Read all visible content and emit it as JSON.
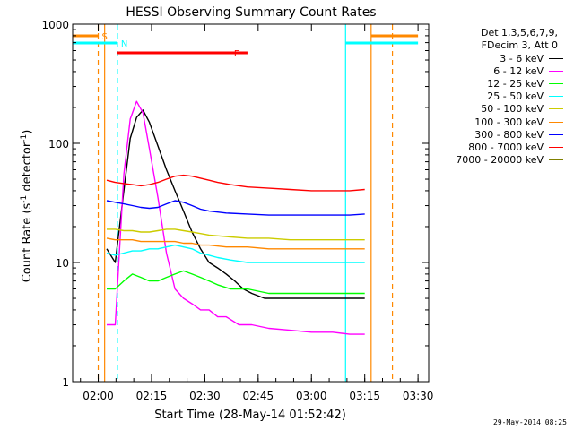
{
  "chart_data": {
    "type": "line",
    "title": "HESSI Observing Summary Count Rates",
    "xlabel": "Start Time (28-May-14 01:52:42)",
    "ylabel_main": "Count Rate (s",
    "ylabel_sup1": "-1",
    "ylabel_mid": " detector",
    "ylabel_sup2": "-1",
    "ylabel_end": ")",
    "yscale": "log",
    "ylim": [
      1,
      1000
    ],
    "xlim": [
      1.88,
      3.55
    ],
    "x_units": "hours UT",
    "x_ticks": [
      {
        "value": 2.0,
        "label": "02:00"
      },
      {
        "value": 2.25,
        "label": "02:15"
      },
      {
        "value": 2.5,
        "label": "02:30"
      },
      {
        "value": 2.75,
        "label": "02:45"
      },
      {
        "value": 3.0,
        "label": "03:00"
      },
      {
        "value": 3.25,
        "label": "03:15"
      },
      {
        "value": 3.5,
        "label": "03:30"
      }
    ],
    "y_ticks": [
      {
        "value": 1,
        "label": "1"
      },
      {
        "value": 10,
        "label": "10"
      },
      {
        "value": 100,
        "label": "100"
      },
      {
        "value": 1000,
        "label": "1000"
      }
    ],
    "legend": {
      "header_line1": "Det 1,3,5,6,7,9,",
      "header_line2": "FDecim 3, Att 0",
      "placement": "right"
    },
    "series": [
      {
        "name": "3 - 6 keV",
        "color": "#000000",
        "points": [
          [
            2.04,
            13
          ],
          [
            2.08,
            10
          ],
          [
            2.12,
            40
          ],
          [
            2.15,
            110
          ],
          [
            2.18,
            165
          ],
          [
            2.21,
            190
          ],
          [
            2.24,
            150
          ],
          [
            2.28,
            95
          ],
          [
            2.32,
            60
          ],
          [
            2.36,
            40
          ],
          [
            2.4,
            27
          ],
          [
            2.44,
            18
          ],
          [
            2.48,
            13
          ],
          [
            2.52,
            10
          ],
          [
            2.56,
            9
          ],
          [
            2.6,
            8
          ],
          [
            2.64,
            7
          ],
          [
            2.68,
            6
          ],
          [
            2.72,
            5.5
          ],
          [
            2.78,
            5
          ],
          [
            2.86,
            5
          ],
          [
            2.94,
            5
          ],
          [
            3.02,
            5
          ],
          [
            3.1,
            5
          ],
          [
            3.18,
            5
          ],
          [
            3.25,
            5
          ]
        ]
      },
      {
        "name": "6 - 12 keV",
        "color": "#ff00ff",
        "points": [
          [
            2.04,
            3
          ],
          [
            2.08,
            3
          ],
          [
            2.12,
            55
          ],
          [
            2.15,
            160
          ],
          [
            2.18,
            225
          ],
          [
            2.21,
            180
          ],
          [
            2.24,
            90
          ],
          [
            2.28,
            35
          ],
          [
            2.32,
            12
          ],
          [
            2.36,
            6
          ],
          [
            2.4,
            5
          ],
          [
            2.44,
            4.5
          ],
          [
            2.48,
            4
          ],
          [
            2.52,
            4
          ],
          [
            2.56,
            3.5
          ],
          [
            2.6,
            3.5
          ],
          [
            2.66,
            3
          ],
          [
            2.72,
            3
          ],
          [
            2.8,
            2.8
          ],
          [
            2.9,
            2.7
          ],
          [
            3.0,
            2.6
          ],
          [
            3.1,
            2.6
          ],
          [
            3.18,
            2.5
          ],
          [
            3.25,
            2.5
          ]
        ]
      },
      {
        "name": "12 - 25 keV",
        "color": "#00ff00",
        "points": [
          [
            2.04,
            6
          ],
          [
            2.08,
            6
          ],
          [
            2.12,
            7
          ],
          [
            2.16,
            8
          ],
          [
            2.2,
            7.5
          ],
          [
            2.24,
            7
          ],
          [
            2.28,
            7
          ],
          [
            2.32,
            7.5
          ],
          [
            2.36,
            8
          ],
          [
            2.4,
            8.5
          ],
          [
            2.44,
            8
          ],
          [
            2.48,
            7.5
          ],
          [
            2.52,
            7
          ],
          [
            2.56,
            6.5
          ],
          [
            2.62,
            6
          ],
          [
            2.7,
            6
          ],
          [
            2.8,
            5.5
          ],
          [
            2.9,
            5.5
          ],
          [
            3.0,
            5.5
          ],
          [
            3.1,
            5.5
          ],
          [
            3.18,
            5.5
          ],
          [
            3.25,
            5.5
          ]
        ]
      },
      {
        "name": "25 - 50 keV",
        "color": "#00ffff",
        "points": [
          [
            2.04,
            12
          ],
          [
            2.08,
            11.5
          ],
          [
            2.12,
            12
          ],
          [
            2.16,
            12.5
          ],
          [
            2.2,
            12.5
          ],
          [
            2.24,
            13
          ],
          [
            2.28,
            13
          ],
          [
            2.32,
            13.5
          ],
          [
            2.36,
            14
          ],
          [
            2.4,
            13.5
          ],
          [
            2.44,
            13
          ],
          [
            2.48,
            12
          ],
          [
            2.52,
            11.5
          ],
          [
            2.56,
            11
          ],
          [
            2.62,
            10.5
          ],
          [
            2.7,
            10
          ],
          [
            2.8,
            10
          ],
          [
            2.9,
            10
          ],
          [
            3.0,
            10
          ],
          [
            3.1,
            10
          ],
          [
            3.18,
            10
          ],
          [
            3.25,
            10
          ]
        ]
      },
      {
        "name": "50 - 100 keV",
        "color": "#cccc00",
        "points": [
          [
            2.04,
            19
          ],
          [
            2.08,
            19
          ],
          [
            2.12,
            18.5
          ],
          [
            2.16,
            18.5
          ],
          [
            2.2,
            18
          ],
          [
            2.24,
            18
          ],
          [
            2.28,
            18.5
          ],
          [
            2.32,
            19
          ],
          [
            2.36,
            19
          ],
          [
            2.4,
            18.5
          ],
          [
            2.44,
            18
          ],
          [
            2.48,
            17.5
          ],
          [
            2.52,
            17
          ],
          [
            2.6,
            16.5
          ],
          [
            2.7,
            16
          ],
          [
            2.8,
            16
          ],
          [
            2.9,
            15.5
          ],
          [
            3.0,
            15.5
          ],
          [
            3.1,
            15.5
          ],
          [
            3.18,
            15.5
          ],
          [
            3.25,
            15.5
          ]
        ]
      },
      {
        "name": "100 - 300 keV",
        "color": "#ff8800",
        "points": [
          [
            2.04,
            16
          ],
          [
            2.08,
            15.5
          ],
          [
            2.12,
            15.5
          ],
          [
            2.16,
            15.5
          ],
          [
            2.2,
            15
          ],
          [
            2.24,
            15
          ],
          [
            2.28,
            15
          ],
          [
            2.32,
            15
          ],
          [
            2.36,
            15
          ],
          [
            2.4,
            14.5
          ],
          [
            2.44,
            14.5
          ],
          [
            2.48,
            14
          ],
          [
            2.52,
            14
          ],
          [
            2.6,
            13.5
          ],
          [
            2.7,
            13.5
          ],
          [
            2.8,
            13
          ],
          [
            2.9,
            13
          ],
          [
            3.0,
            13
          ],
          [
            3.1,
            13
          ],
          [
            3.18,
            13
          ],
          [
            3.25,
            13
          ]
        ]
      },
      {
        "name": "300 - 800 keV",
        "color": "#0000ff",
        "points": [
          [
            2.04,
            33
          ],
          [
            2.08,
            32
          ],
          [
            2.12,
            31
          ],
          [
            2.16,
            30
          ],
          [
            2.2,
            29
          ],
          [
            2.24,
            28.5
          ],
          [
            2.28,
            29
          ],
          [
            2.32,
            31
          ],
          [
            2.36,
            33
          ],
          [
            2.4,
            32
          ],
          [
            2.44,
            30
          ],
          [
            2.48,
            28
          ],
          [
            2.52,
            27
          ],
          [
            2.6,
            26
          ],
          [
            2.7,
            25.5
          ],
          [
            2.8,
            25
          ],
          [
            2.9,
            25
          ],
          [
            3.0,
            25
          ],
          [
            3.1,
            25
          ],
          [
            3.18,
            25
          ],
          [
            3.25,
            25.5
          ]
        ]
      },
      {
        "name": "800 - 7000 keV",
        "color": "#ff0000",
        "points": [
          [
            2.04,
            49
          ],
          [
            2.08,
            47
          ],
          [
            2.12,
            46
          ],
          [
            2.16,
            45
          ],
          [
            2.2,
            44
          ],
          [
            2.24,
            45
          ],
          [
            2.28,
            47
          ],
          [
            2.32,
            50
          ],
          [
            2.36,
            53
          ],
          [
            2.4,
            54
          ],
          [
            2.44,
            53
          ],
          [
            2.48,
            51
          ],
          [
            2.52,
            49
          ],
          [
            2.56,
            47
          ],
          [
            2.62,
            45
          ],
          [
            2.7,
            43
          ],
          [
            2.8,
            42
          ],
          [
            2.9,
            41
          ],
          [
            3.0,
            40
          ],
          [
            3.1,
            40
          ],
          [
            3.18,
            40
          ],
          [
            3.25,
            41
          ]
        ]
      },
      {
        "name": "7000 - 20000 keV",
        "color": "#808000",
        "points": []
      }
    ],
    "flags": {
      "saa": {
        "label": "S",
        "color": "#ff8800",
        "intervals": [
          [
            1.88,
            2.0
          ],
          [
            3.28,
            3.5
          ]
        ]
      },
      "night": {
        "label": "N",
        "color": "#00ffff",
        "intervals": [
          [
            1.88,
            2.09
          ],
          [
            3.16,
            3.5
          ]
        ]
      },
      "flare": {
        "label": "F",
        "color": "#ff0000",
        "intervals": [
          [
            2.09,
            2.7
          ]
        ]
      }
    },
    "vertical_markers": [
      {
        "x": 2.03,
        "color": "#ff8800",
        "style": "solid"
      },
      {
        "x": 2.0,
        "color": "#ff8800",
        "style": "dashed"
      },
      {
        "x": 2.09,
        "color": "#00ffff",
        "style": "dashed"
      },
      {
        "x": 3.16,
        "color": "#00ffff",
        "style": "solid"
      },
      {
        "x": 3.28,
        "color": "#ff8800",
        "style": "solid"
      },
      {
        "x": 3.38,
        "color": "#ff8800",
        "style": "dashed"
      }
    ]
  },
  "footer": {
    "date_stamp": "29-May-2014 08:25"
  }
}
